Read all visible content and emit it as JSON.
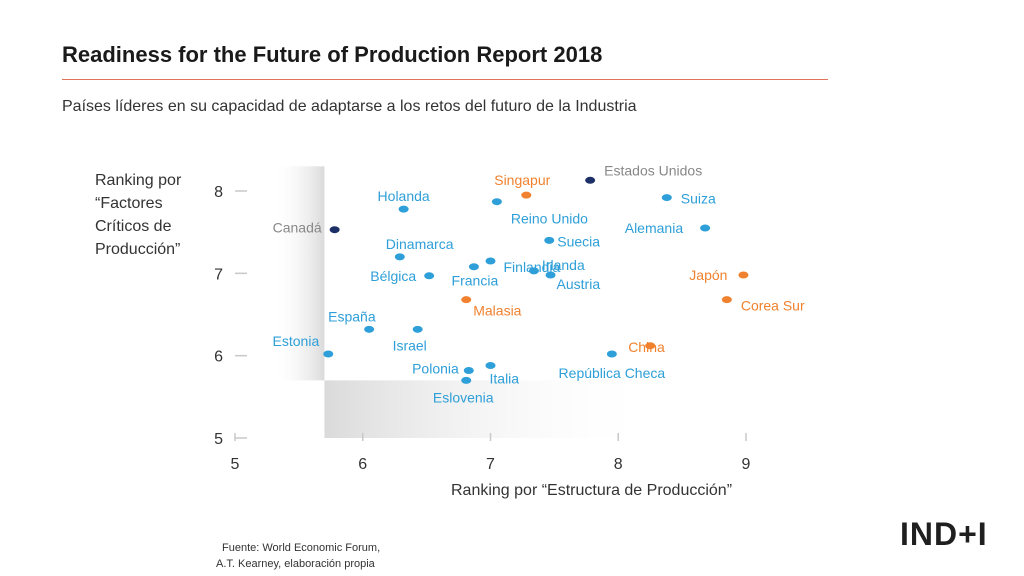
{
  "header": {
    "title": "Readiness for the Future of Production Report 2018",
    "subtitle": "Países líderes en su capacidad de adaptarse a los retos del futuro de la Industria"
  },
  "footer": {
    "source_line1": "Fuente: World Economic Forum,",
    "source_line2": "A.T. Kearney, elaboración propia",
    "logo": "IND+I"
  },
  "colors": {
    "blue": "#2e9fd8",
    "orange": "#f0822f",
    "navy": "#1c2f66",
    "accent_rule": "#e3735b"
  },
  "chart_data": {
    "type": "scatter",
    "title": "Readiness for the Future of Production Report 2018",
    "xlabel": "Ranking por “Estructura de Producción”",
    "ylabel": "Ranking por “Factores Críticos de Producción”",
    "xlim": [
      5,
      9
    ],
    "ylim": [
      5,
      8.3
    ],
    "x_ticks": [
      "5",
      "6",
      "7",
      "8",
      "9"
    ],
    "y_ticks": [
      "5",
      "6",
      "7",
      "8"
    ],
    "shaded_regions": [
      {
        "x": [
          5.3,
          5.7
        ],
        "y": [
          5.7,
          8.3
        ]
      },
      {
        "x": [
          5.7,
          8.3
        ],
        "y": [
          5,
          5.7
        ]
      }
    ],
    "points": [
      {
        "name": "Estados Unidos",
        "x": 7.78,
        "y": 8.13,
        "group": "navy"
      },
      {
        "name": "Canadá",
        "x": 5.78,
        "y": 7.53,
        "group": "navy"
      },
      {
        "name": "Singapur",
        "x": 7.28,
        "y": 7.95,
        "group": "orange"
      },
      {
        "name": "Japón",
        "x": 8.98,
        "y": 6.98,
        "group": "orange"
      },
      {
        "name": "Corea Sur",
        "x": 8.85,
        "y": 6.68,
        "group": "orange"
      },
      {
        "name": "China",
        "x": 8.25,
        "y": 6.12,
        "group": "orange"
      },
      {
        "name": "Malasia",
        "x": 6.81,
        "y": 6.68,
        "group": "orange"
      },
      {
        "name": "Suiza",
        "x": 8.38,
        "y": 7.92,
        "group": "blue"
      },
      {
        "name": "Holanda",
        "x": 6.32,
        "y": 7.78,
        "group": "blue"
      },
      {
        "name": "Reino Unido",
        "x": 7.05,
        "y": 7.87,
        "group": "blue"
      },
      {
        "name": "Alemania",
        "x": 8.68,
        "y": 7.55,
        "group": "blue"
      },
      {
        "name": "Suecia",
        "x": 7.46,
        "y": 7.4,
        "group": "blue"
      },
      {
        "name": "Dinamarca",
        "x": 6.29,
        "y": 7.2,
        "group": "blue"
      },
      {
        "name": "Finlandia",
        "x": 7.0,
        "y": 7.15,
        "group": "blue"
      },
      {
        "name": "Irlanda",
        "x": 7.34,
        "y": 7.03,
        "group": "blue"
      },
      {
        "name": "Austria",
        "x": 7.47,
        "y": 6.98,
        "group": "blue"
      },
      {
        "name": "Bélgica",
        "x": 6.52,
        "y": 6.97,
        "group": "blue"
      },
      {
        "name": "Francia",
        "x": 6.87,
        "y": 7.08,
        "group": "blue"
      },
      {
        "name": "España",
        "x": 6.05,
        "y": 6.32,
        "group": "blue"
      },
      {
        "name": "Israel",
        "x": 6.43,
        "y": 6.32,
        "group": "blue"
      },
      {
        "name": "Estonia",
        "x": 5.73,
        "y": 6.02,
        "group": "blue"
      },
      {
        "name": "Polonia",
        "x": 6.83,
        "y": 5.82,
        "group": "blue"
      },
      {
        "name": "Italia",
        "x": 7.0,
        "y": 5.88,
        "group": "blue"
      },
      {
        "name": "Eslovenia",
        "x": 6.81,
        "y": 5.7,
        "group": "blue"
      },
      {
        "name": "República Checa",
        "x": 7.95,
        "y": 6.02,
        "group": "blue"
      }
    ]
  }
}
